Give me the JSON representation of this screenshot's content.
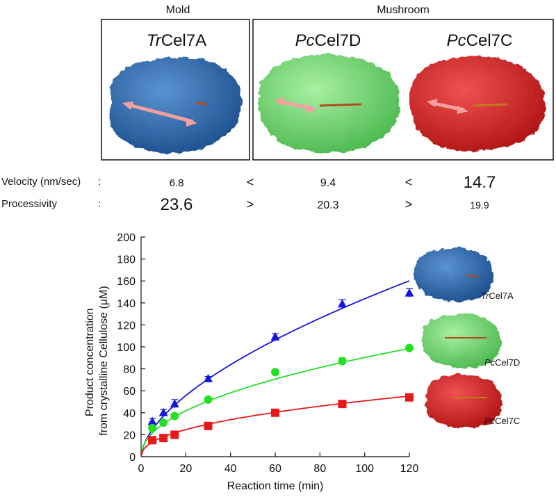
{
  "groups": [
    {
      "label": "Mold"
    },
    {
      "label": "Mushroom"
    }
  ],
  "enzymes": [
    {
      "prefix": "Tr",
      "suffix": "Cel7A",
      "color": "#2f6fb5"
    },
    {
      "prefix": "Pc",
      "suffix": "Cel7D",
      "color": "#7fe07f"
    },
    {
      "prefix": "Pc",
      "suffix": "Cel7C",
      "color": "#e02b2b"
    }
  ],
  "comparison": {
    "velocity": {
      "label": "Velocity (nm/sec)",
      "colon": ":",
      "values": [
        "6.8",
        "9.4",
        "14.7"
      ],
      "operators": [
        "<",
        "<"
      ]
    },
    "processivity": {
      "label": "Processivity",
      "colon": ":",
      "values": [
        "23.6",
        "20.3",
        "19.9"
      ],
      "operators": [
        ">",
        ">"
      ]
    }
  },
  "chart_data": {
    "type": "scatter",
    "xlabel": "Reaction time (min)",
    "ylabel_lines": [
      "Product concentration",
      "from crystalline Cellulose (μM)"
    ],
    "xlim": [
      0,
      120
    ],
    "ylim": [
      0,
      200
    ],
    "xticks": [
      0,
      20,
      40,
      60,
      80,
      100,
      120
    ],
    "yticks": [
      0,
      20,
      40,
      60,
      80,
      100,
      120,
      140,
      160,
      180,
      200
    ],
    "grid": false,
    "series": [
      {
        "name": "TrCel7A",
        "prefix": "Tr",
        "suffix": "Cel7A",
        "color": "#1515e0",
        "marker": "triangle",
        "x": [
          5,
          10,
          15,
          30,
          60,
          90,
          120
        ],
        "y": [
          32,
          40,
          48,
          71,
          109,
          139,
          149
        ],
        "err": [
          3,
          3,
          4,
          2,
          3,
          4,
          4
        ],
        "fit": {
          "a": 9.5,
          "b": 0.59
        }
      },
      {
        "name": "PcCel7D",
        "prefix": "Pc",
        "suffix": "Cel7D",
        "color": "#22e022",
        "marker": "circle",
        "x": [
          5,
          10,
          15,
          30,
          60,
          90,
          120
        ],
        "y": [
          26,
          31,
          37,
          52,
          77,
          87,
          99
        ],
        "err": [
          2,
          2,
          2,
          2,
          2,
          3,
          2
        ],
        "fit": {
          "a": 9.9,
          "b": 0.48
        }
      },
      {
        "name": "PcCel7C",
        "prefix": "Pc",
        "suffix": "Cel7C",
        "color": "#e81818",
        "marker": "square",
        "x": [
          5,
          10,
          15,
          30,
          60,
          90,
          120
        ],
        "y": [
          15,
          17,
          20,
          28,
          40,
          48,
          54
        ],
        "err": [
          1,
          1,
          1,
          1,
          1,
          1,
          1
        ],
        "fit": {
          "a": 6.4,
          "b": 0.45
        }
      }
    ]
  }
}
